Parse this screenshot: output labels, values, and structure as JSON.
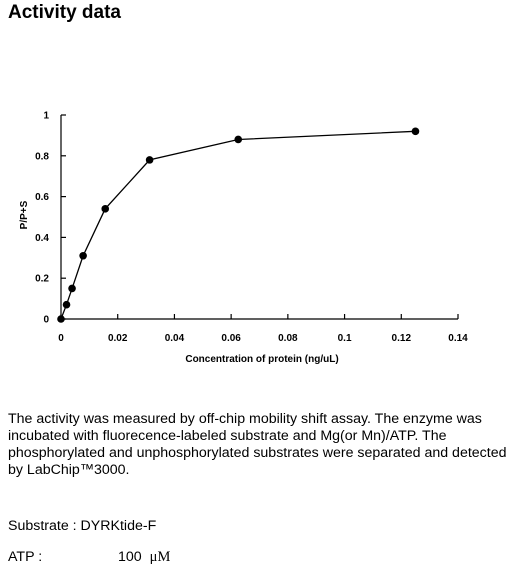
{
  "page": {
    "title": "Activity data"
  },
  "chart_data": {
    "type": "line",
    "title": "",
    "xlabel": "Concentration of protein (ng/uL)",
    "ylabel": "P/P+S",
    "xlim": [
      0,
      0.14
    ],
    "ylim": [
      0,
      1
    ],
    "xticks": [
      "0",
      "0.02",
      "0.04",
      "0.06",
      "0.08",
      "0.1",
      "0.12",
      "0.14"
    ],
    "yticks": [
      "0",
      "0.2",
      "0.4",
      "0.6",
      "0.8",
      "1"
    ],
    "grid": false,
    "legend": "none",
    "series": [
      {
        "x": [
          0,
          0.00195,
          0.0039,
          0.0078,
          0.0156,
          0.03125,
          0.0625,
          0.125
        ],
        "y": [
          0.0,
          0.07,
          0.15,
          0.31,
          0.54,
          0.78,
          0.88,
          0.92
        ]
      }
    ],
    "colors": {
      "line": "#000000",
      "marker": "#000000"
    }
  },
  "description": {
    "text": "The activity was measured by off-chip mobility shift assay. The enzyme was incubated with fluorecence-labeled  substrate and Mg(or Mn)/ATP. The phosphorylated and unphosphorylated substrates were separated and detected by LabChip™3000."
  },
  "conditions": {
    "substrate": "Substrate : DYRKtide-F",
    "atp_label": "ATP :",
    "atp_value": "100",
    "atp_unit": "μM"
  }
}
